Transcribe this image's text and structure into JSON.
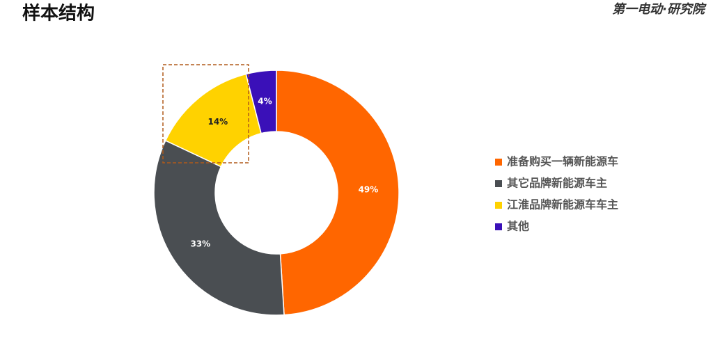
{
  "header": {
    "title": "样本结构",
    "logo": "第一电动·研究院"
  },
  "chart_data": {
    "type": "donut",
    "categories": [
      "准备购买一辆新能源车",
      "其它品牌新能源车主",
      "江淮品牌新能源车车主",
      "其他"
    ],
    "values": [
      49,
      33,
      14,
      4
    ],
    "value_labels": [
      "49%",
      "33%",
      "14%",
      "4%"
    ],
    "colors": [
      "#ff6600",
      "#4a4e52",
      "#ffd200",
      "#3a10b8"
    ],
    "legend": "right"
  }
}
